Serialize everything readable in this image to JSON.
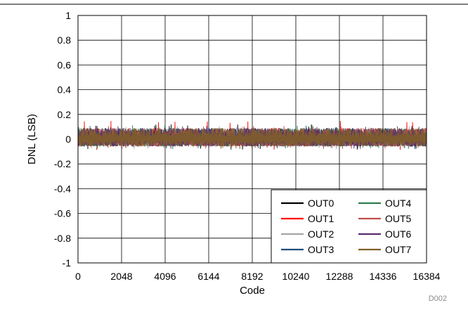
{
  "chart_data": {
    "type": "line",
    "title": "",
    "xlabel": "Code",
    "ylabel": "DNL (LSB)",
    "xlim": [
      0,
      16384
    ],
    "ylim": [
      -1,
      1
    ],
    "xticks": [
      0,
      2048,
      4096,
      6144,
      8192,
      10240,
      12288,
      14336,
      16384
    ],
    "xtick_labels": [
      "0",
      "2048",
      "4096",
      "6144",
      "8192",
      "10240",
      "12288",
      "14336",
      "16384"
    ],
    "yticks": [
      1,
      0.8,
      0.6,
      0.4,
      0.2,
      0,
      -0.2,
      -0.4,
      -0.6,
      -0.8,
      -1
    ],
    "ytick_labels": [
      "1",
      "0.8",
      "0.6",
      "0.4",
      "0.2",
      "0",
      "-0.2",
      "-0.4",
      "-0.6",
      "-0.8",
      "-1"
    ],
    "grid": true,
    "legend_position": "bottom-right",
    "series": [
      {
        "name": "OUT0",
        "color": "#000000",
        "typical_band": [
          -0.06,
          0.09
        ],
        "peak_max": 0.12,
        "peak_min": -0.09
      },
      {
        "name": "OUT1",
        "color": "#ff0000",
        "typical_band": [
          -0.06,
          0.09
        ],
        "peak_max": 0.15,
        "peak_min": -0.09
      },
      {
        "name": "OUT2",
        "color": "#a6a6a6",
        "typical_band": [
          -0.06,
          0.09
        ],
        "peak_max": 0.11,
        "peak_min": -0.08
      },
      {
        "name": "OUT3",
        "color": "#1f4e79",
        "typical_band": [
          -0.06,
          0.09
        ],
        "peak_max": 0.11,
        "peak_min": -0.08
      },
      {
        "name": "OUT4",
        "color": "#2e7d4f",
        "typical_band": [
          -0.06,
          0.09
        ],
        "peak_max": 0.12,
        "peak_min": -0.08
      },
      {
        "name": "OUT5",
        "color": "#c0504d",
        "typical_band": [
          -0.06,
          0.09
        ],
        "peak_max": 0.11,
        "peak_min": -0.08
      },
      {
        "name": "OUT6",
        "color": "#5b2c6f",
        "typical_band": [
          -0.06,
          0.09
        ],
        "peak_max": 0.11,
        "peak_min": -0.08
      },
      {
        "name": "OUT7",
        "color": "#7f5f2a",
        "typical_band": [
          -0.06,
          0.09
        ],
        "peak_max": 0.11,
        "peak_min": -0.08
      }
    ]
  },
  "footnote": "D002"
}
